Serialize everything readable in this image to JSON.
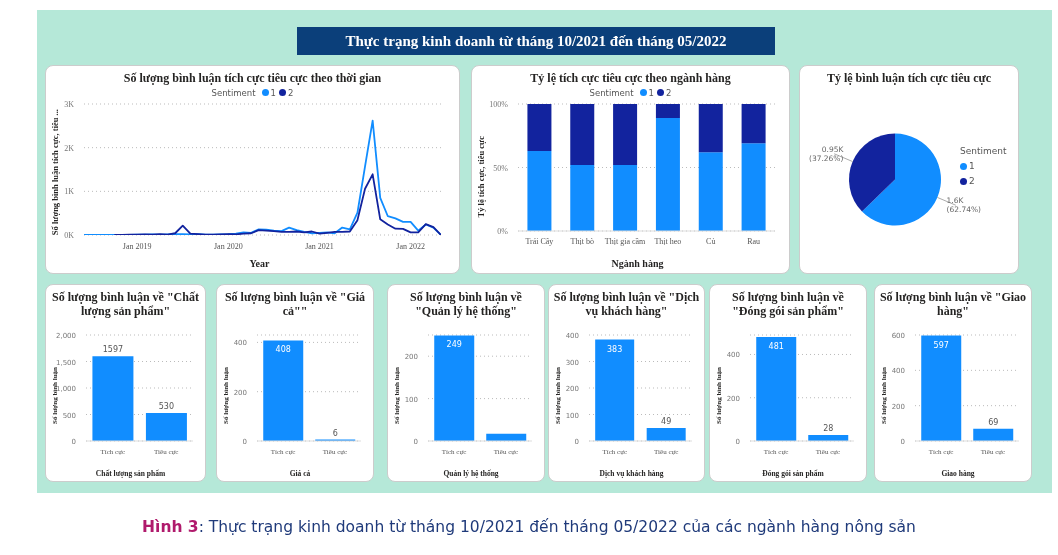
{
  "chart_data": [
    {
      "type": "other",
      "title": "Thực trạng kinh doanh từ tháng 10/2021 đến tháng 05/2022",
      "annotations": [
        "Hình 3: Thực trạng kinh doanh từ tháng 10/2021 đến tháng 05/2022 của các ngành hàng nông sản"
      ]
    },
    {
      "type": "line",
      "title": "Số lượng bình luận tích cực tiêu cực theo thời gian",
      "xlabel": "Year",
      "ylabel": "Số lượng bình luận tích cực, tiêu ...",
      "legend_title": "Sentiment",
      "legend": "top",
      "grid": "y",
      "xlim": [
        "2018-06",
        "2022-05"
      ],
      "xticks": [
        {
          "value": "2019-01",
          "label": "Jan 2019"
        },
        {
          "value": "2020-01",
          "label": "Jan 2020"
        },
        {
          "value": "2021-01",
          "label": "Jan 2021"
        },
        {
          "value": "2022-01",
          "label": "Jan 2022"
        }
      ],
      "ylim": [
        0,
        3000
      ],
      "yticks": [
        {
          "value": 0,
          "label": "0K"
        },
        {
          "value": 1000,
          "label": "1K"
        },
        {
          "value": 2000,
          "label": "2K"
        },
        {
          "value": 3000,
          "label": "3K"
        }
      ],
      "series": [
        {
          "name": "1",
          "color": "#118dff",
          "x": [
            "2018-06",
            "2018-07",
            "2018-08",
            "2018-09",
            "2018-10",
            "2018-11",
            "2018-12",
            "2019-01",
            "2019-02",
            "2019-03",
            "2019-04",
            "2019-05",
            "2019-06",
            "2019-07",
            "2019-08",
            "2019-09",
            "2019-10",
            "2019-11",
            "2019-12",
            "2020-01",
            "2020-02",
            "2020-03",
            "2020-04",
            "2020-05",
            "2020-06",
            "2020-07",
            "2020-08",
            "2020-09",
            "2020-10",
            "2020-11",
            "2020-12",
            "2021-01",
            "2021-02",
            "2021-03",
            "2021-04",
            "2021-05",
            "2021-06",
            "2021-07",
            "2021-08",
            "2021-09",
            "2021-10",
            "2021-11",
            "2021-12",
            "2022-01",
            "2022-02",
            "2022-03",
            "2022-04",
            "2022-05"
          ],
          "values": [
            0,
            0,
            0,
            0,
            0,
            0,
            0,
            10,
            10,
            15,
            10,
            15,
            20,
            20,
            15,
            20,
            10,
            10,
            15,
            20,
            30,
            60,
            50,
            130,
            120,
            100,
            90,
            170,
            110,
            70,
            40,
            50,
            60,
            40,
            170,
            130,
            510,
            1570,
            2620,
            850,
            430,
            380,
            300,
            300,
            100,
            240,
            170,
            0
          ]
        },
        {
          "name": "2",
          "color": "#12239e",
          "x": [
            "2018-10",
            "2018-11",
            "2018-12",
            "2019-01",
            "2019-02",
            "2019-03",
            "2019-04",
            "2019-05",
            "2019-06",
            "2019-07",
            "2019-08",
            "2019-09",
            "2019-10",
            "2019-11",
            "2019-12",
            "2020-01",
            "2020-02",
            "2020-03",
            "2020-04",
            "2020-05",
            "2020-06",
            "2020-07",
            "2020-08",
            "2020-09",
            "2020-10",
            "2020-11",
            "2020-12",
            "2021-01",
            "2021-02",
            "2021-03",
            "2021-04",
            "2021-05",
            "2021-06",
            "2021-07",
            "2021-08",
            "2021-09",
            "2021-10",
            "2021-11",
            "2021-12",
            "2022-01",
            "2022-02",
            "2022-03",
            "2022-04",
            "2022-05"
          ],
          "values": [
            0,
            5,
            10,
            10,
            15,
            10,
            20,
            10,
            40,
            215,
            30,
            20,
            10,
            10,
            15,
            20,
            15,
            30,
            40,
            110,
            100,
            90,
            70,
            70,
            80,
            60,
            80,
            30,
            50,
            70,
            70,
            80,
            340,
            1060,
            1390,
            360,
            240,
            145,
            140,
            60,
            60,
            250,
            180,
            0
          ]
        }
      ]
    },
    {
      "type": "bar",
      "stacked": true,
      "title": "Tỷ lệ tích cực tiêu cực theo ngành hàng",
      "xlabel": "Ngành hàng",
      "ylabel": "Tỷ lệ tích cực, tiêu cực",
      "legend_title": "Sentiment",
      "legend": "top",
      "grid": "y",
      "categories": [
        "Trái Cây",
        "Thịt bò",
        "Thịt gia cầm",
        "Thịt heo",
        "Củ",
        "Rau"
      ],
      "ylim": [
        0,
        100
      ],
      "yticks": [
        {
          "value": 0,
          "label": "0%"
        },
        {
          "value": 50,
          "label": "50%"
        },
        {
          "value": 100,
          "label": "100%"
        }
      ],
      "series": [
        {
          "name": "1",
          "color": "#118dff",
          "values": [
            63,
            52,
            52,
            89,
            62,
            69
          ]
        },
        {
          "name": "2",
          "color": "#12239e",
          "values": [
            37,
            48,
            48,
            11,
            38,
            31
          ]
        }
      ]
    },
    {
      "type": "pie",
      "title": "Tỷ lệ bình luận tích cực tiêu cực",
      "legend_title": "Sentiment",
      "legend": "right",
      "categories": [
        "1",
        "2"
      ],
      "values": [
        62.74,
        37.26
      ],
      "colors": [
        "#118dff",
        "#12239e"
      ],
      "value_labels": [
        "1.6K (62.74%)",
        "0.95K (37.26%)"
      ]
    },
    {
      "type": "bar",
      "title": "Số lượng bình luận về \"Chất lượng sản phẩm\"",
      "xlabel": "Chất lượng sản phẩm",
      "ylabel": "Số lượng bình luận",
      "categories": [
        "Tích cực",
        "Tiêu cực"
      ],
      "values": [
        1597,
        530
      ],
      "color": "#118dff",
      "data_labels": true,
      "grid": "y",
      "ylim": [
        0,
        2000
      ],
      "yticks": [
        0,
        500,
        {
          "value": 1000,
          "label": "1,000"
        },
        {
          "value": 1500,
          "label": "1,500"
        },
        {
          "value": 2000,
          "label": "2,000"
        }
      ]
    },
    {
      "type": "bar",
      "title": "Số lượng bình luận về \"Giá cả\"\"",
      "xlabel": "Giá cả",
      "ylabel": "Số lượng bình luận",
      "categories": [
        "Tích cực",
        "Tiêu cực"
      ],
      "values": [
        408,
        6
      ],
      "color": "#118dff",
      "data_labels": true,
      "grid": "y",
      "ylim": [
        0,
        430
      ],
      "yticks": [
        0,
        200,
        400
      ]
    },
    {
      "type": "bar",
      "title": "Số lượng bình luận về \"Quản lý hệ thống\"",
      "xlabel": "Quản lý hệ thống",
      "ylabel": "Số lượng bình luận",
      "categories": [
        "Tích cực",
        "Tiêu cực"
      ],
      "values": [
        249,
        17
      ],
      "value_labels": [
        "249",
        null
      ],
      "color": "#118dff",
      "grid": "y",
      "ylim": [
        0,
        250
      ],
      "yticks": [
        0,
        100,
        200
      ]
    },
    {
      "type": "bar",
      "title": "Số lượng bình luận về \"Dịch vụ khách hàng\"",
      "xlabel": "Dịch vụ khách hàng",
      "ylabel": "Số lượng bình luận",
      "categories": [
        "Tích cực",
        "Tiêu cực"
      ],
      "values": [
        383,
        49
      ],
      "color": "#118dff",
      "data_labels": true,
      "grid": "y",
      "ylim": [
        0,
        400
      ],
      "yticks": [
        0,
        100,
        200,
        300,
        400
      ]
    },
    {
      "type": "bar",
      "title": "Số lượng bình luận về \"Đóng gói sản phẩm\"",
      "xlabel": "Đóng gói sản phẩm",
      "ylabel": "Số lượng bình luận",
      "categories": [
        "Tích cực",
        "Tiêu cực"
      ],
      "values": [
        481,
        28
      ],
      "color": "#118dff",
      "data_labels": true,
      "grid": "y",
      "ylim": [
        0,
        490
      ],
      "yticks": [
        0,
        200,
        400
      ]
    },
    {
      "type": "bar",
      "title": "Số lượng bình luận về \"Giao hàng\"",
      "xlabel": "Giao hàng",
      "ylabel": "Số lượng bình luận",
      "categories": [
        "Tích cực",
        "Tiêu cực"
      ],
      "values": [
        597,
        69
      ],
      "color": "#118dff",
      "data_labels": true,
      "grid": "y",
      "ylim": [
        0,
        600
      ],
      "yticks": [
        0,
        200,
        400,
        600
      ]
    }
  ]
}
